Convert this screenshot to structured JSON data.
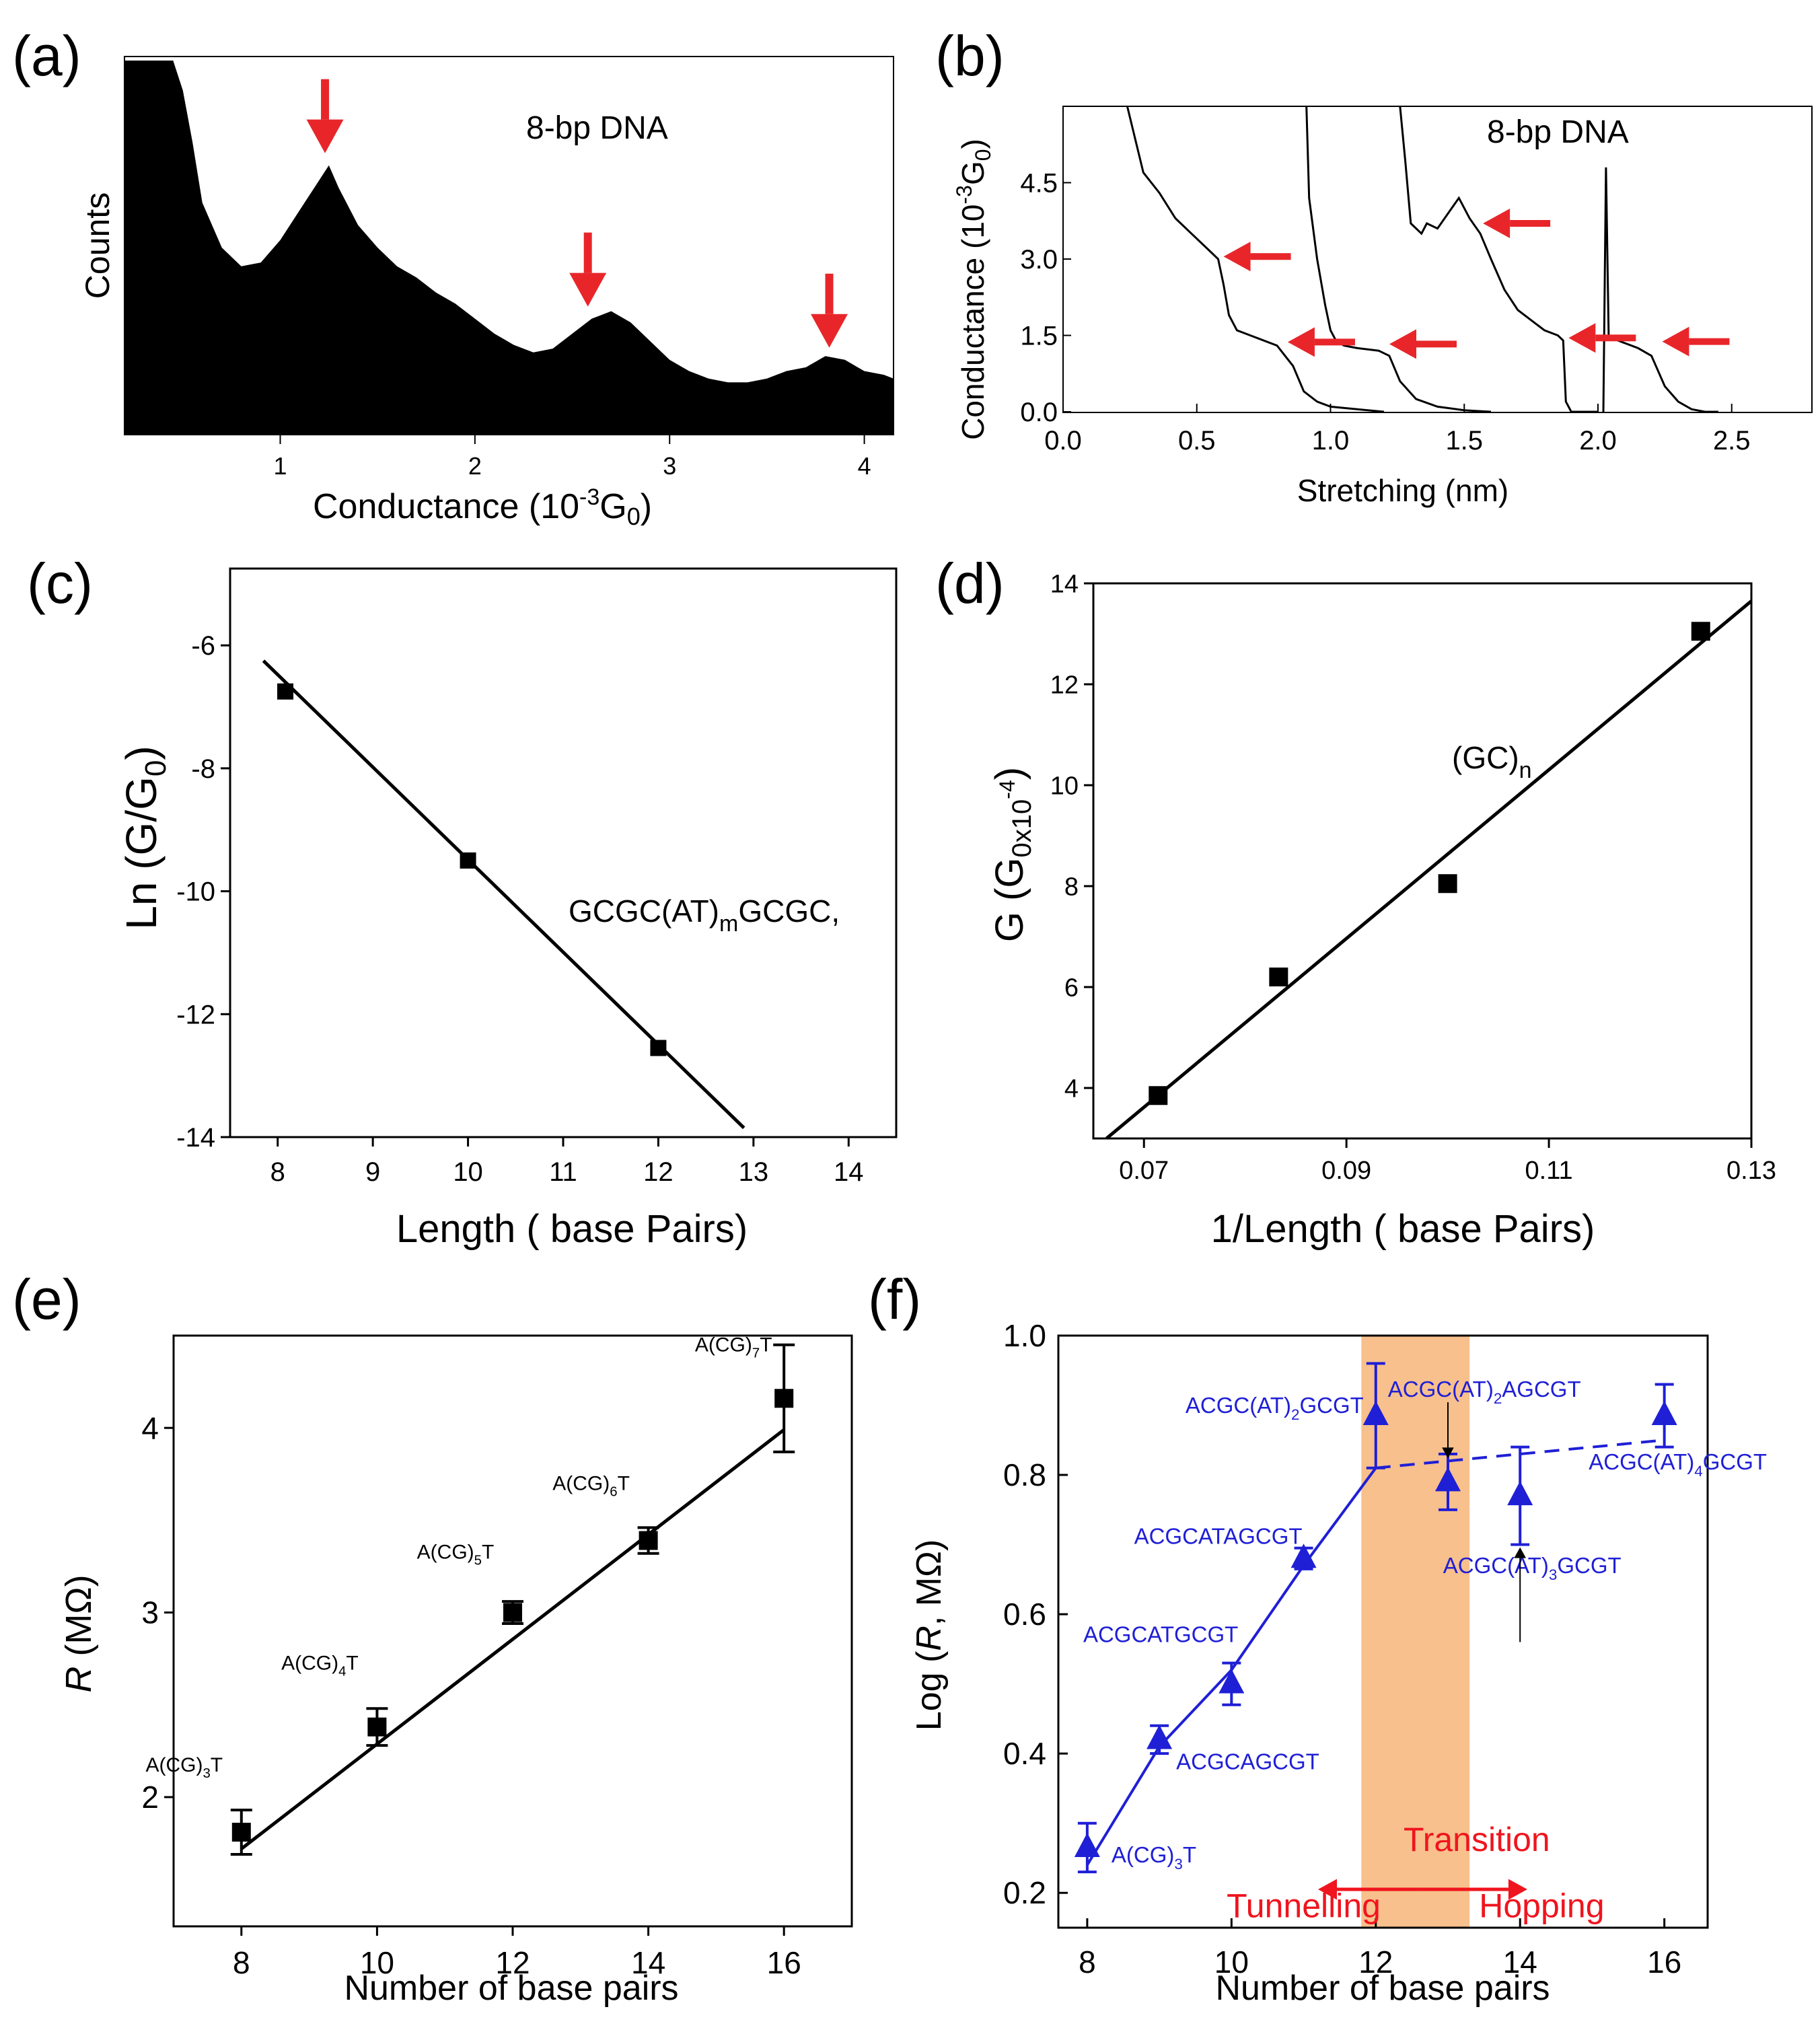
{
  "panel_labels": [
    "(a)",
    "(b)",
    "(c)",
    "(d)",
    "(e)",
    "(f)"
  ],
  "chart_data": [
    {
      "panel": "(a)",
      "type": "area",
      "annotation": "8-bp DNA",
      "xlabel": "Conductance (10",
      "xlabel_sup": "-3",
      "xlabel_tail": "G",
      "xlabel_sub": "0",
      "xlabel_close": ")",
      "ylabel": "Counts",
      "xlim": [
        0.2,
        4.15
      ],
      "ylim": [
        0,
        1
      ],
      "xticks": [
        "1",
        "2",
        "3",
        "4"
      ],
      "x": [
        0.2,
        0.45,
        0.5,
        0.55,
        0.6,
        0.7,
        0.8,
        0.9,
        1.0,
        1.1,
        1.2,
        1.25,
        1.3,
        1.4,
        1.5,
        1.6,
        1.7,
        1.8,
        1.9,
        2.0,
        2.1,
        2.2,
        2.3,
        2.4,
        2.5,
        2.6,
        2.7,
        2.8,
        2.9,
        3.0,
        3.1,
        3.2,
        3.3,
        3.4,
        3.5,
        3.6,
        3.7,
        3.8,
        3.9,
        4.0,
        4.1,
        4.15
      ],
      "counts": [
        1.0,
        1.0,
        0.92,
        0.78,
        0.62,
        0.5,
        0.45,
        0.46,
        0.52,
        0.6,
        0.68,
        0.72,
        0.66,
        0.56,
        0.5,
        0.45,
        0.42,
        0.38,
        0.35,
        0.31,
        0.27,
        0.24,
        0.22,
        0.23,
        0.27,
        0.31,
        0.33,
        0.3,
        0.25,
        0.2,
        0.17,
        0.15,
        0.14,
        0.14,
        0.15,
        0.17,
        0.18,
        0.21,
        0.2,
        0.17,
        0.16,
        0.15
      ],
      "arrows_x": [
        1.23,
        2.58,
        3.82
      ],
      "colors": {
        "fill": "#000000",
        "arrow": "#e8262a"
      }
    },
    {
      "panel": "(b)",
      "type": "line",
      "annotation": "8-bp DNA",
      "xlabel": "Stretching (nm)",
      "ylabel": "Conductance (10",
      "ylabel_sup": "-3",
      "ylabel_tail": "G",
      "ylabel_sub": "0",
      "ylabel_close": ")",
      "xlim": [
        0.0,
        2.8
      ],
      "ylim": [
        0.0,
        6.0
      ],
      "xticks": [
        "0.0",
        "0.5",
        "1.0",
        "1.5",
        "2.0",
        "2.5"
      ],
      "yticks": [
        "0.0",
        "1.5",
        "3.0",
        "4.5"
      ],
      "series": [
        {
          "x": [
            0.24,
            0.3,
            0.36,
            0.42,
            0.48,
            0.54,
            0.58,
            0.6,
            0.62,
            0.65,
            0.7,
            0.8,
            0.86,
            0.9,
            0.95,
            1.0,
            1.1,
            1.2
          ],
          "y": [
            6.0,
            4.7,
            4.3,
            3.8,
            3.5,
            3.2,
            3.0,
            2.5,
            1.9,
            1.6,
            1.5,
            1.3,
            0.9,
            0.4,
            0.2,
            0.1,
            0.05,
            0.0
          ]
        },
        {
          "x": [
            0.91,
            0.92,
            0.95,
            0.98,
            1.0,
            1.02,
            1.05,
            1.1,
            1.18,
            1.22,
            1.26,
            1.32,
            1.4,
            1.5,
            1.6
          ],
          "y": [
            6.0,
            4.2,
            3.0,
            2.1,
            1.6,
            1.4,
            1.3,
            1.25,
            1.2,
            1.1,
            0.6,
            0.25,
            0.1,
            0.03,
            0.0
          ]
        },
        {
          "x": [
            1.26,
            1.28,
            1.3,
            1.34,
            1.36,
            1.4,
            1.44,
            1.48,
            1.52,
            1.56,
            1.6,
            1.65,
            1.7,
            1.75,
            1.8,
            1.85,
            1.87,
            1.88,
            1.9,
            2.0
          ],
          "y": [
            6.0,
            4.9,
            3.7,
            3.5,
            3.7,
            3.6,
            3.9,
            4.2,
            3.8,
            3.5,
            3.0,
            2.4,
            2.0,
            1.8,
            1.6,
            1.5,
            1.4,
            0.2,
            0.0,
            0.0
          ]
        },
        {
          "x": [
            2.02,
            2.03,
            2.04,
            2.05,
            2.1,
            2.15,
            2.2,
            2.25,
            2.3,
            2.35,
            2.4,
            2.45
          ],
          "y": [
            0.0,
            4.8,
            1.5,
            1.45,
            1.35,
            1.25,
            1.1,
            0.5,
            0.2,
            0.05,
            0.0,
            0.0
          ]
        }
      ],
      "arrows": [
        {
          "x": 0.58,
          "y": 3.05
        },
        {
          "x": 0.82,
          "y": 1.37
        },
        {
          "x": 1.2,
          "y": 1.33
        },
        {
          "x": 1.55,
          "y": 3.7
        },
        {
          "x": 1.87,
          "y": 1.45
        },
        {
          "x": 2.22,
          "y": 1.38
        }
      ],
      "colors": {
        "line": "#000000",
        "arrow": "#e8262a"
      }
    },
    {
      "panel": "(c)",
      "type": "scatter",
      "xlabel": "Length ( base Pairs)",
      "ylabel": "Ln (G/G",
      "ylabel_sub": "0",
      "ylabel_close": ")",
      "xlim": [
        7.5,
        14.5
      ],
      "ylim": [
        -14,
        -5
      ],
      "xticks": [
        "8",
        "9",
        "10",
        "11",
        "12",
        "13",
        "14"
      ],
      "yticks": [
        "-14",
        "-12",
        "-10",
        "-8",
        "-6"
      ],
      "x": [
        8.08,
        10.0,
        12.0
      ],
      "y": [
        -6.75,
        -9.5,
        -12.55
      ],
      "fit": {
        "x": [
          7.85,
          12.9
        ],
        "y": [
          -6.25,
          -13.85
        ]
      },
      "annotation": "GCGC(AT)",
      "annotation_sub": "m",
      "annotation_tail": "GCGC,"
    },
    {
      "panel": "(d)",
      "type": "scatter",
      "xlabel": "1/Length ( base Pairs)",
      "ylabel": "G (G",
      "ylabel_sub": "0x10",
      "ylabel_sup": "-4",
      "ylabel_close": ")",
      "xlim": [
        0.065,
        0.13
      ],
      "ylim": [
        3.0,
        14.0
      ],
      "xticks": [
        "0.07",
        "0.09",
        "0.11",
        "0.13"
      ],
      "yticks": [
        "4",
        "6",
        "8",
        "10",
        "12",
        "14"
      ],
      "x": [
        0.0714,
        0.0833,
        0.1,
        0.125
      ],
      "y": [
        3.85,
        6.2,
        8.05,
        13.05
      ],
      "fit": {
        "x": [
          0.0663,
          0.13
        ],
        "y": [
          3.0,
          13.65
        ]
      },
      "annotation": "(GC)",
      "annotation_sub": "n"
    },
    {
      "panel": "(e)",
      "type": "scatter",
      "xlabel": "Number of base pairs",
      "ylabel": "R",
      "ylabel_tail": " (MΩ)",
      "xlim": [
        7,
        17
      ],
      "ylim": [
        1.3,
        4.5
      ],
      "xticks": [
        "8",
        "10",
        "12",
        "14",
        "16"
      ],
      "yticks": [
        "2",
        "3",
        "4"
      ],
      "x": [
        8,
        10,
        12,
        14,
        16
      ],
      "y": [
        1.81,
        2.38,
        3.0,
        3.39,
        4.16
      ],
      "yerr": [
        0.12,
        0.1,
        0.06,
        0.07,
        0.29
      ],
      "fit": {
        "x": [
          8,
          16
        ],
        "y": [
          1.72,
          3.99
        ]
      },
      "labels": [
        {
          "text": "A(CG)",
          "sub": "3",
          "tail": "T"
        },
        {
          "text": "A(CG)",
          "sub": "4",
          "tail": "T"
        },
        {
          "text": "A(CG)",
          "sub": "5",
          "tail": "T"
        },
        {
          "text": "A(CG)",
          "sub": "6",
          "tail": "T"
        },
        {
          "text": "A(CG)",
          "sub": "7",
          "tail": "T"
        }
      ]
    },
    {
      "panel": "(f)",
      "type": "scatter",
      "xlabel": "Number of base pairs",
      "ylabel": "Log (",
      "ylabel_it": "R",
      "ylabel_tail": ", MΩ)",
      "xlim": [
        7.6,
        16.6
      ],
      "ylim": [
        0.15,
        1.0
      ],
      "xticks": [
        "8",
        "10",
        "12",
        "14",
        "16"
      ],
      "yticks": [
        "0.2",
        "0.4",
        "0.6",
        "0.8",
        "1.0"
      ],
      "x": [
        8,
        9,
        10,
        11,
        12,
        13,
        14,
        16
      ],
      "y": [
        0.265,
        0.42,
        0.5,
        0.68,
        0.885,
        0.79,
        0.77,
        0.885
      ],
      "yerr": [
        0.035,
        0.02,
        0.03,
        0.015,
        0.075,
        0.04,
        0.07,
        0.045
      ],
      "fit_solid": {
        "x": [
          8,
          9,
          10,
          11,
          12
        ],
        "y": [
          0.24,
          0.41,
          0.52,
          0.67,
          0.81
        ]
      },
      "fit_dashed": {
        "x": [
          12,
          16
        ],
        "y": [
          0.81,
          0.85
        ]
      },
      "transition_band": [
        11.8,
        13.3
      ],
      "labels": [
        {
          "text": "A(CG)",
          "sub": "3",
          "tail": "T"
        },
        {
          "text": "ACGCAGCGT"
        },
        {
          "text": "ACGCATGCGT"
        },
        {
          "text": "ACGCATAGCGT"
        },
        {
          "text": "ACGC(AT)",
          "sub": "2",
          "tail": "GCGT"
        },
        {
          "text": "ACGC(AT)",
          "sub": "2",
          "tail": "AGCGT"
        },
        {
          "text": "ACGC(AT)",
          "sub": "3",
          "tail": "GCGT"
        },
        {
          "text": "ACGC(AT)",
          "sub": "4",
          "tail": "GCGT"
        }
      ],
      "regime_labels": {
        "transition": "Transition",
        "tunnelling": "Tunnelling",
        "hopping": "Hopping"
      },
      "colors": {
        "points": "#1f1fd6",
        "band": "#f7c08c",
        "regime": "#f0141e"
      }
    }
  ]
}
